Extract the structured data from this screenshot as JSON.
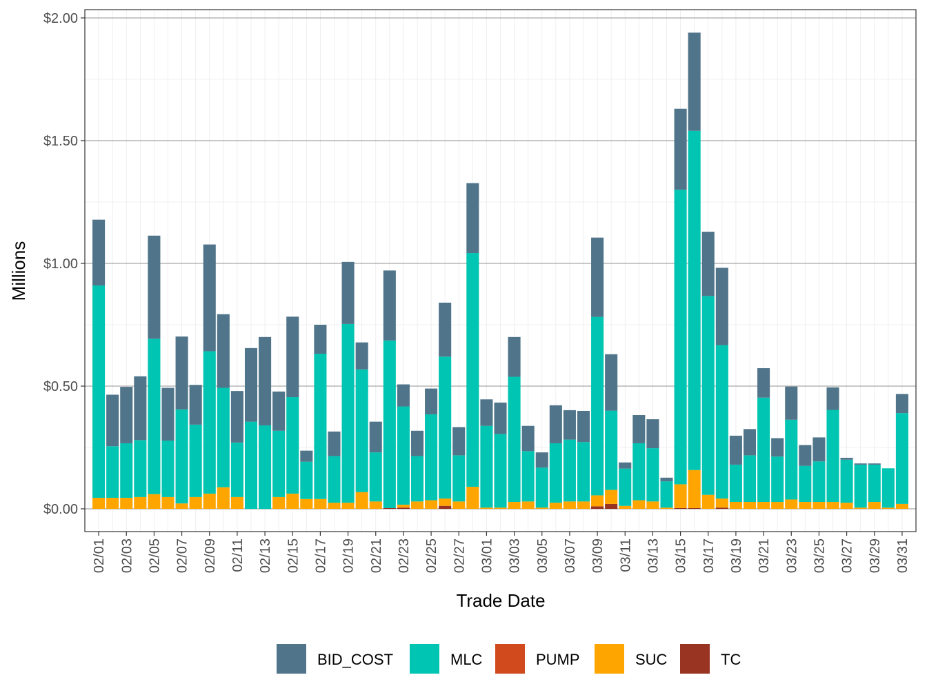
{
  "chart_data": {
    "type": "bar",
    "stacked": true,
    "xlabel": "Trade Date",
    "ylabel": "Millions",
    "ylim": [
      0,
      2.0
    ],
    "y_ticks": [
      0,
      0.5,
      1.0,
      1.5,
      2.0
    ],
    "y_tick_labels": [
      "$0.00",
      "$0.50",
      "$1.00",
      "$1.50",
      "$2.00"
    ],
    "x_tick_labels": [
      "02/01",
      "02/03",
      "02/05",
      "02/07",
      "02/09",
      "02/11",
      "02/13",
      "02/15",
      "02/17",
      "02/19",
      "02/21",
      "02/23",
      "02/25",
      "02/27",
      "03/01",
      "03/03",
      "03/05",
      "03/07",
      "03/09",
      "03/11",
      "03/13",
      "03/15",
      "03/17",
      "03/19",
      "03/21",
      "03/23",
      "03/25",
      "03/27",
      "03/29",
      "03/31"
    ],
    "grid": true,
    "legend_position": "bottom",
    "categories": [
      "02/01",
      "02/02",
      "02/03",
      "02/04",
      "02/05",
      "02/06",
      "02/07",
      "02/08",
      "02/09",
      "02/10",
      "02/11",
      "02/12",
      "02/13",
      "02/14",
      "02/15",
      "02/16",
      "02/17",
      "02/18",
      "02/19",
      "02/20",
      "02/21",
      "02/22",
      "02/23",
      "02/24",
      "02/25",
      "02/26",
      "02/27",
      "02/28",
      "03/01",
      "03/02",
      "03/03",
      "03/04",
      "03/05",
      "03/06",
      "03/07",
      "03/08",
      "03/09",
      "03/10",
      "03/11",
      "03/12",
      "03/13",
      "03/14",
      "03/15",
      "03/16",
      "03/17",
      "03/18",
      "03/19",
      "03/20",
      "03/21",
      "03/22",
      "03/23",
      "03/24",
      "03/25",
      "03/26",
      "03/27",
      "03/28",
      "03/29",
      "03/30",
      "03/31"
    ],
    "series": [
      {
        "name": "TC",
        "color": "#993322",
        "values": [
          0,
          0,
          0,
          0,
          0,
          0,
          0,
          0,
          0,
          0,
          0,
          0,
          0,
          0,
          0,
          0,
          0,
          0,
          0,
          0,
          0,
          0.003,
          0.005,
          0,
          0,
          0.012,
          0,
          0,
          0,
          0,
          0,
          0,
          0,
          0,
          0,
          0,
          0.01,
          0.02,
          0,
          0,
          0,
          0,
          0.003,
          0.003,
          0,
          0.005,
          0,
          0,
          0,
          0,
          0,
          0,
          0,
          0,
          0,
          0,
          0,
          0,
          0
        ]
      },
      {
        "name": "PUMP",
        "color": "#D04A1E",
        "values": [
          0,
          0,
          0,
          0,
          0,
          0,
          0,
          0,
          0,
          0,
          0,
          0,
          0,
          0,
          0,
          0,
          0,
          0,
          0,
          0,
          0,
          0,
          0,
          0,
          0,
          0,
          0,
          0,
          0,
          0,
          0,
          0,
          0,
          0,
          0,
          0,
          0,
          0,
          0,
          0,
          0,
          0,
          0,
          0,
          0,
          0,
          0,
          0,
          0,
          0,
          0,
          0,
          0,
          0,
          0,
          0,
          0,
          0,
          0
        ]
      },
      {
        "name": "SUC",
        "color": "#FFA500",
        "values": [
          0.045,
          0.045,
          0.045,
          0.048,
          0.06,
          0.048,
          0.022,
          0.048,
          0.062,
          0.088,
          0.048,
          0,
          0,
          0.048,
          0.062,
          0.04,
          0.04,
          0.025,
          0.025,
          0.068,
          0.03,
          0,
          0.012,
          0.03,
          0.035,
          0.03,
          0.03,
          0.09,
          0.005,
          0.005,
          0.028,
          0.03,
          0.005,
          0.025,
          0.03,
          0.03,
          0.045,
          0.057,
          0.012,
          0.035,
          0.03,
          0.005,
          0.097,
          0.155,
          0.057,
          0.037,
          0.028,
          0.028,
          0.028,
          0.028,
          0.038,
          0.028,
          0.028,
          0.028,
          0.025,
          0.005,
          0.028,
          0.005,
          0.02
        ]
      },
      {
        "name": "MLC",
        "color": "#00C5B2",
        "values": [
          0.865,
          0.21,
          0.222,
          0.232,
          0.633,
          0.23,
          0.383,
          0.295,
          0.58,
          0.405,
          0.222,
          0.355,
          0.34,
          0.27,
          0.393,
          0.152,
          0.592,
          0.19,
          0.728,
          0.5,
          0.2,
          0.683,
          0.4,
          0.185,
          0.35,
          0.578,
          0.188,
          0.952,
          0.333,
          0.3,
          0.51,
          0.205,
          0.163,
          0.242,
          0.252,
          0.242,
          0.727,
          0.323,
          0.152,
          0.232,
          0.217,
          0.107,
          1.2,
          1.382,
          0.81,
          0.625,
          0.152,
          0.19,
          0.425,
          0.185,
          0.325,
          0.147,
          0.165,
          0.375,
          0.175,
          0.175,
          0.152,
          0.16,
          0.37
        ]
      },
      {
        "name": "BID_COST",
        "color": "#50758A",
        "values": [
          0.268,
          0.21,
          0.23,
          0.26,
          0.42,
          0.215,
          0.297,
          0.162,
          0.435,
          0.3,
          0.21,
          0.3,
          0.36,
          0.16,
          0.328,
          0.045,
          0.118,
          0.1,
          0.253,
          0.11,
          0.125,
          0.285,
          0.09,
          0.103,
          0.105,
          0.22,
          0.115,
          0.285,
          0.108,
          0.128,
          0.162,
          0.103,
          0.062,
          0.155,
          0.12,
          0.127,
          0.323,
          0.23,
          0.025,
          0.115,
          0.118,
          0.015,
          0.33,
          0.4,
          0.262,
          0.315,
          0.118,
          0.107,
          0.12,
          0.075,
          0.135,
          0.085,
          0.098,
          0.092,
          0.008,
          0.005,
          0.005,
          0,
          0.078
        ]
      }
    ]
  }
}
